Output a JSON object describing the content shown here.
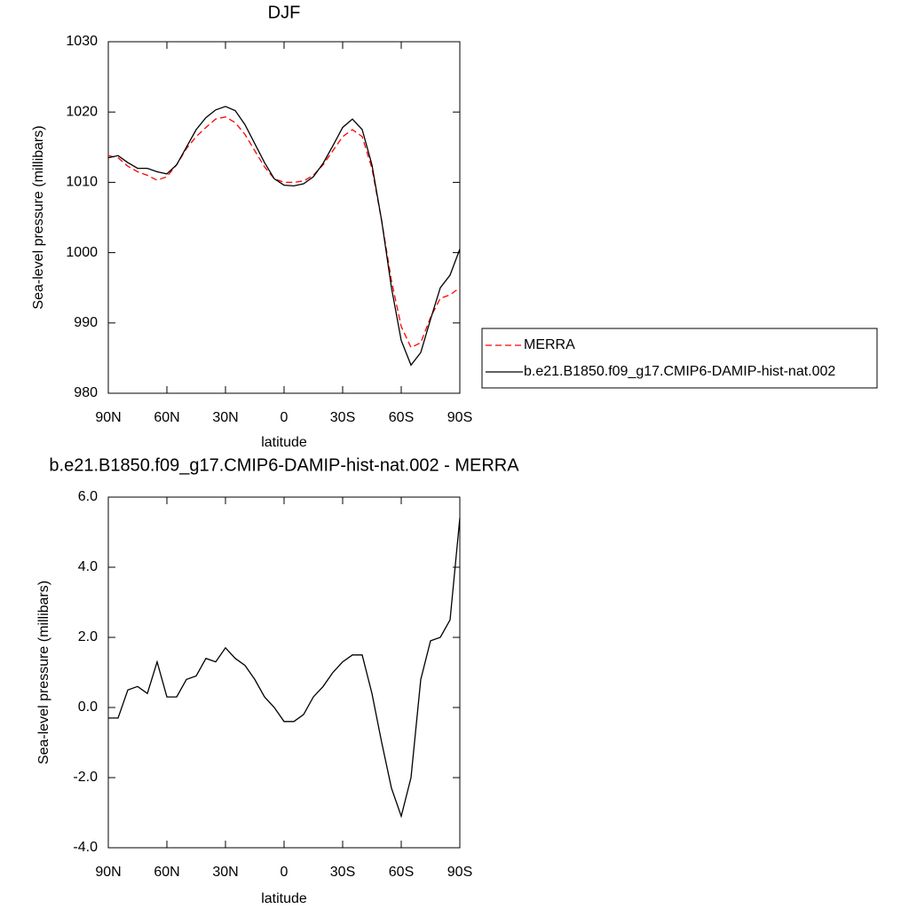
{
  "chart_data": [
    {
      "type": "line",
      "title": "DJF",
      "x_label": "latitude",
      "y_label": "Sea-level pressure (millibars)",
      "x": [
        90,
        85,
        80,
        75,
        70,
        65,
        60,
        55,
        50,
        45,
        40,
        35,
        30,
        25,
        20,
        15,
        10,
        5,
        0,
        -5,
        -10,
        -15,
        -20,
        -25,
        -30,
        -35,
        -40,
        -45,
        -50,
        -55,
        -60,
        -65,
        -70,
        -75,
        -80,
        -85,
        -90
      ],
      "xlim": [
        90,
        -90
      ],
      "xticks": [
        {
          "value": 90,
          "label": "90N"
        },
        {
          "value": 60,
          "label": "60N"
        },
        {
          "value": 30,
          "label": "30N"
        },
        0,
        {
          "value": -30,
          "label": "30S"
        },
        {
          "value": -60,
          "label": "60S"
        },
        {
          "value": -90,
          "label": "90S"
        }
      ],
      "ylim": [
        980,
        1030
      ],
      "yticks": [
        980,
        990,
        1000,
        1010,
        1020,
        1030
      ],
      "legend": "right",
      "series": [
        {
          "name": "MERRA",
          "color": "#ff0000",
          "line_style": "dashed",
          "values": [
            1013.8,
            1013.5,
            1012.3,
            1011.5,
            1011.0,
            1010.3,
            1010.8,
            1012.5,
            1014.8,
            1016.5,
            1017.8,
            1019.0,
            1019.3,
            1018.5,
            1016.8,
            1014.5,
            1012.2,
            1010.5,
            1010.0,
            1010.0,
            1010.2,
            1011.0,
            1012.5,
            1014.5,
            1016.5,
            1017.5,
            1016.5,
            1012.0,
            1004.5,
            996.0,
            989.5,
            986.5,
            987.2,
            990.8,
            993.5,
            994.0,
            995.0
          ]
        },
        {
          "name": "b.e21.B1850.f09_g17.CMIP6-DAMIP-hist-nat.002",
          "color": "#000000",
          "line_style": "solid",
          "values": [
            1013.5,
            1013.8,
            1012.8,
            1012.0,
            1012.0,
            1011.5,
            1011.2,
            1012.5,
            1015.0,
            1017.5,
            1019.2,
            1020.3,
            1020.8,
            1020.2,
            1018.2,
            1015.5,
            1012.8,
            1010.5,
            1009.6,
            1009.5,
            1009.8,
            1010.8,
            1012.7,
            1015.2,
            1017.8,
            1019.0,
            1017.5,
            1012.5,
            1004.5,
            995.0,
            987.5,
            984.0,
            985.8,
            990.5,
            995.0,
            996.8,
            1000.5
          ]
        }
      ]
    },
    {
      "type": "line",
      "title": "b.e21.B1850.f09_g17.CMIP6-DAMIP-hist-nat.002 - MERRA",
      "x_label": "latitude",
      "y_label": "Sea-level pressure (millibars)",
      "x": [
        90,
        85,
        80,
        75,
        70,
        65,
        60,
        55,
        50,
        45,
        40,
        35,
        30,
        25,
        20,
        15,
        10,
        5,
        0,
        -5,
        -10,
        -15,
        -20,
        -25,
        -30,
        -35,
        -40,
        -45,
        -50,
        -55,
        -60,
        -65,
        -70,
        -75,
        -80,
        -85,
        -90
      ],
      "xlim": [
        90,
        -90
      ],
      "xticks": [
        {
          "value": 90,
          "label": "90N"
        },
        {
          "value": 60,
          "label": "60N"
        },
        {
          "value": 30,
          "label": "30N"
        },
        0,
        {
          "value": -30,
          "label": "30S"
        },
        {
          "value": -60,
          "label": "60S"
        },
        {
          "value": -90,
          "label": "90S"
        }
      ],
      "ylim": [
        -4,
        6
      ],
      "yticks": [
        {
          "value": -4,
          "label": "-4.0"
        },
        {
          "value": -2,
          "label": "-2.0"
        },
        {
          "value": 0,
          "label": "0.0"
        },
        {
          "value": 2,
          "label": "2.0"
        },
        {
          "value": 4,
          "label": "4.0"
        },
        {
          "value": 6,
          "label": "6.0"
        }
      ],
      "series": [
        {
          "color": "#000000",
          "line_style": "solid",
          "values": [
            -0.3,
            -0.3,
            0.5,
            0.6,
            0.4,
            1.3,
            0.3,
            0.3,
            0.8,
            0.9,
            1.4,
            1.3,
            1.7,
            1.4,
            1.2,
            0.8,
            0.3,
            0.0,
            -0.4,
            -0.4,
            -0.2,
            0.3,
            0.6,
            1.0,
            1.3,
            1.5,
            1.5,
            0.4,
            -1.0,
            -2.3,
            -3.1,
            -2.0,
            0.8,
            1.9,
            2.0,
            2.5,
            5.4
          ]
        }
      ]
    }
  ]
}
